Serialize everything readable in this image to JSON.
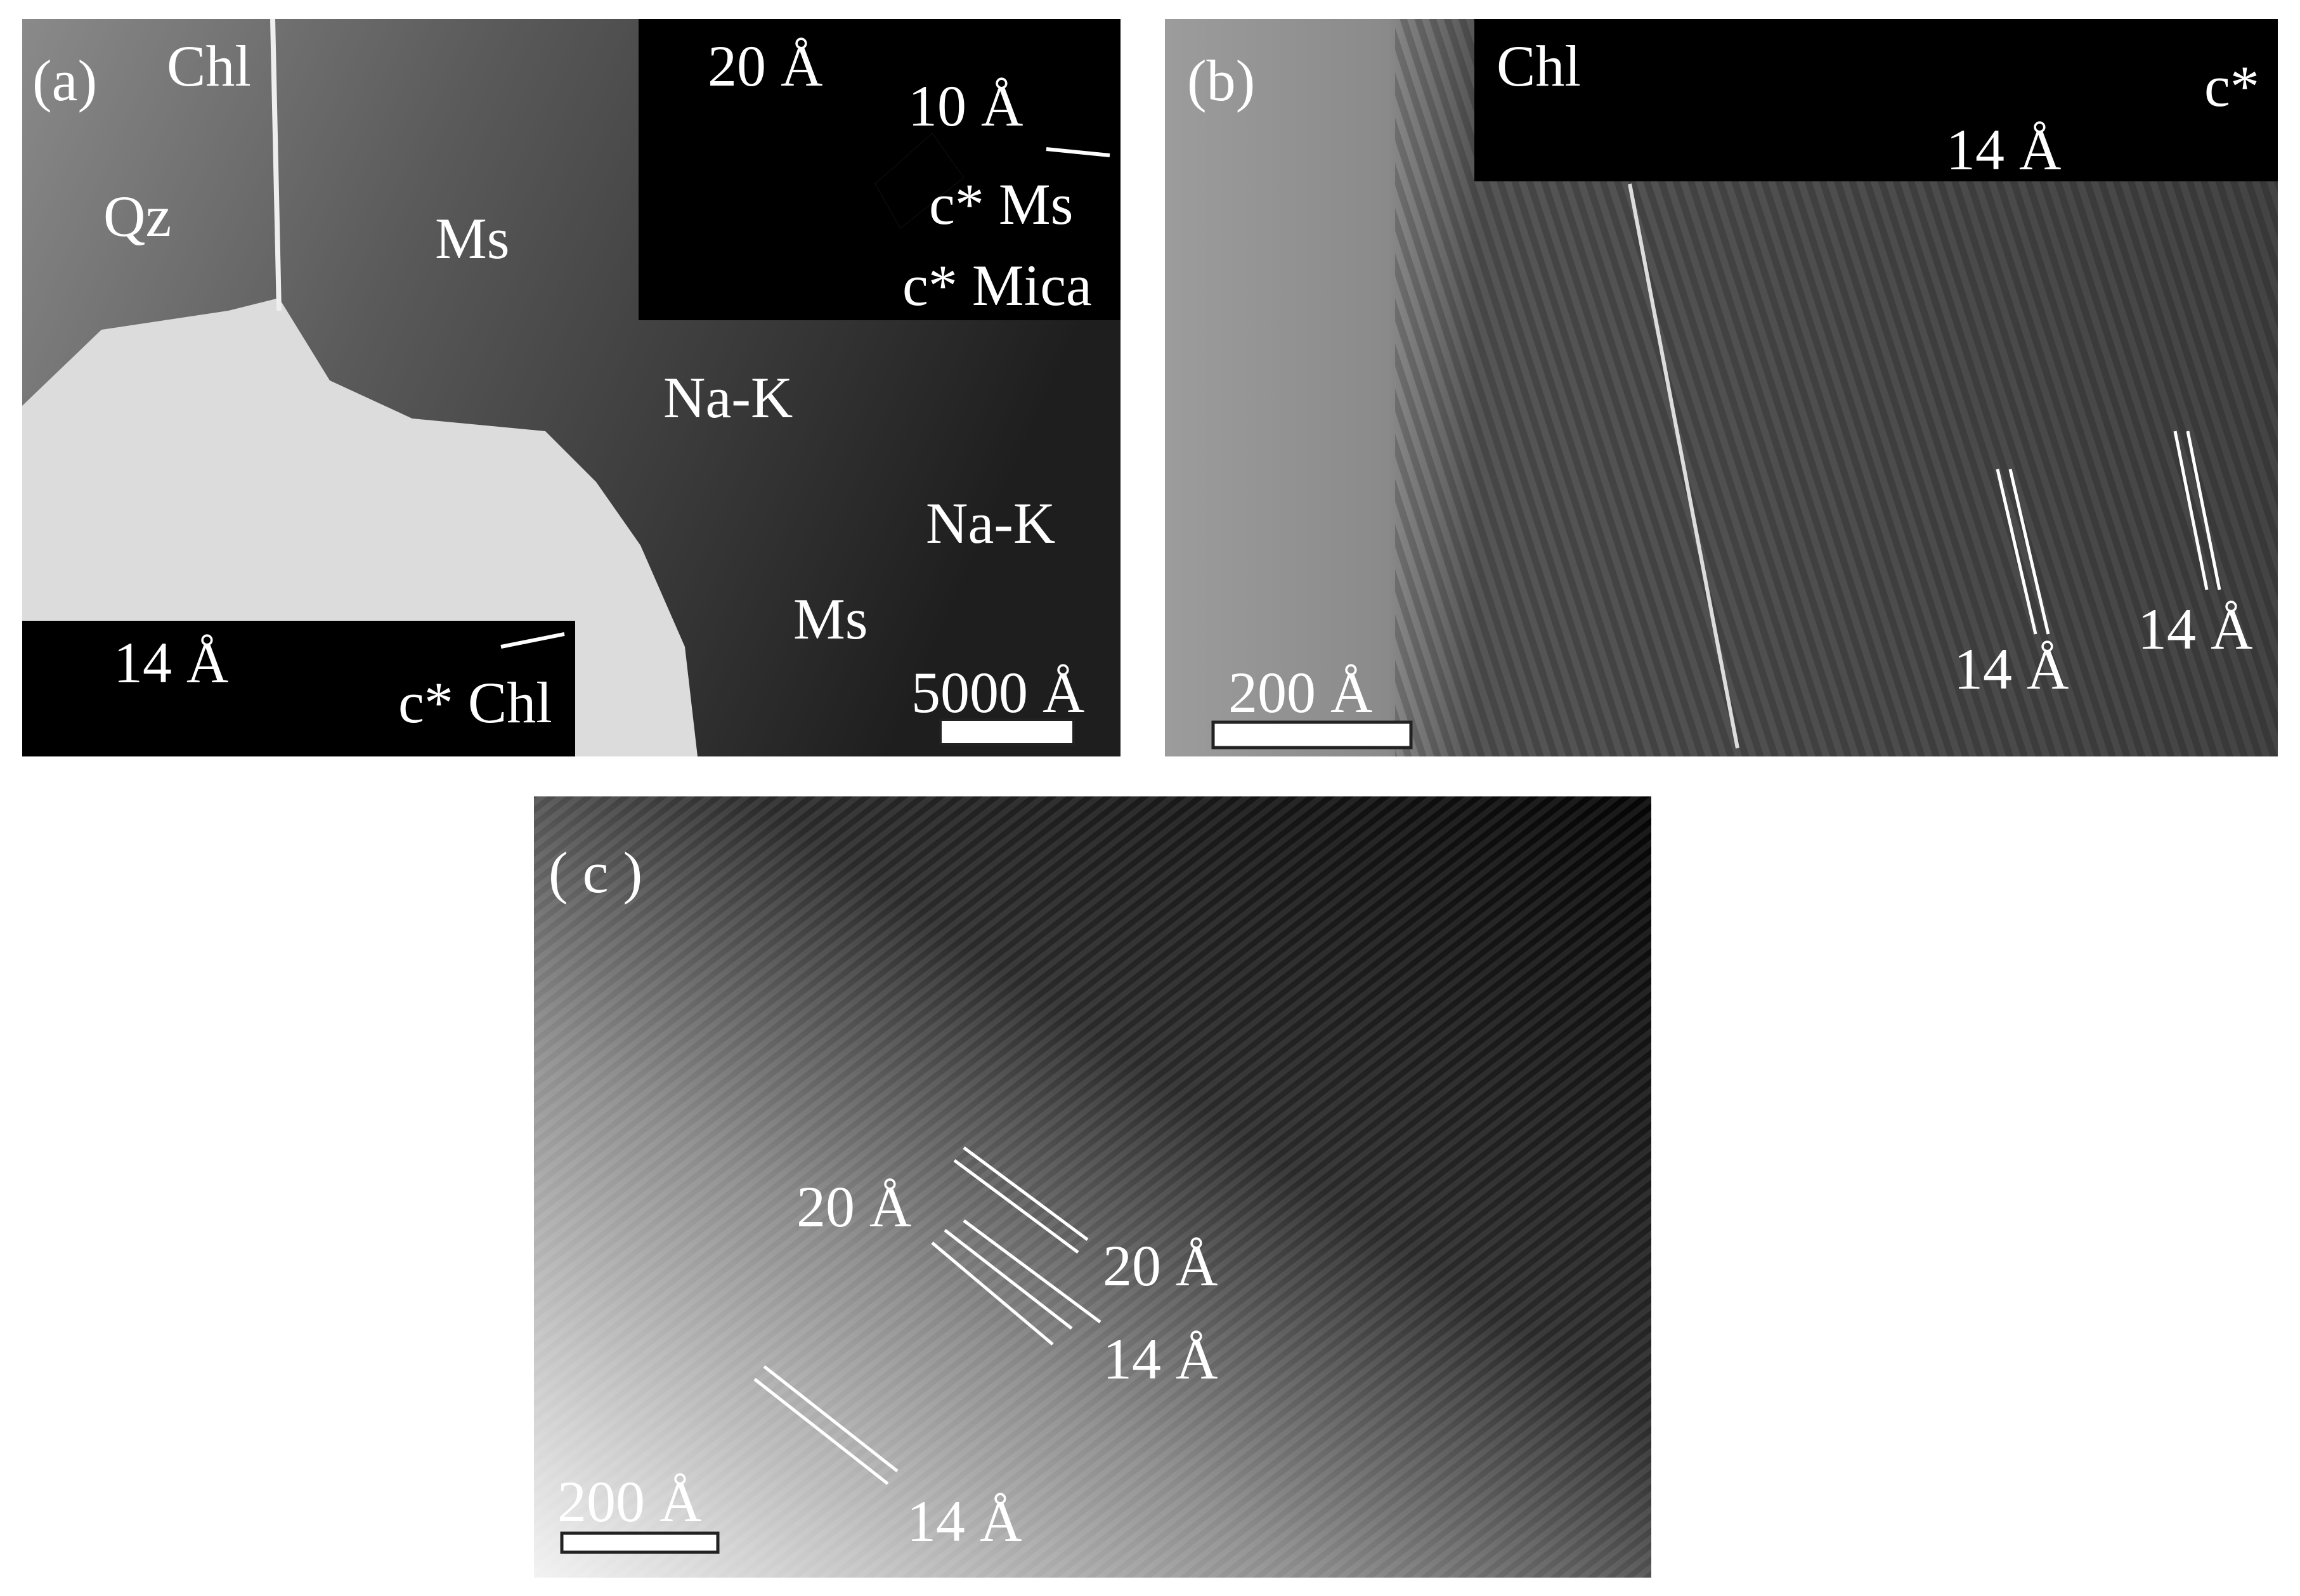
{
  "panels": [
    {
      "label": "(a)",
      "labels": [
        "Chl",
        "Qz",
        "Ms",
        "Na-K",
        "Na-K",
        "Ms"
      ],
      "scale_bar": "5000 Å",
      "inset_top": {
        "labels": [
          "20 Å",
          "10 Å",
          "c* Ms",
          "c* Mica"
        ]
      },
      "inset_bottom": {
        "labels": [
          "14 Å",
          "c* Chl"
        ]
      }
    },
    {
      "label": "(b)",
      "inset": {
        "labels": [
          "Chl",
          "14 Å",
          "c*"
        ]
      },
      "labels": [
        "14 Å",
        "14 Å"
      ],
      "scale_bar": "200 Å"
    },
    {
      "label": "( c )",
      "labels": [
        "20 Å",
        "20 Å",
        "14 Å",
        "14 Å"
      ],
      "scale_bar": "200 Å"
    }
  ]
}
